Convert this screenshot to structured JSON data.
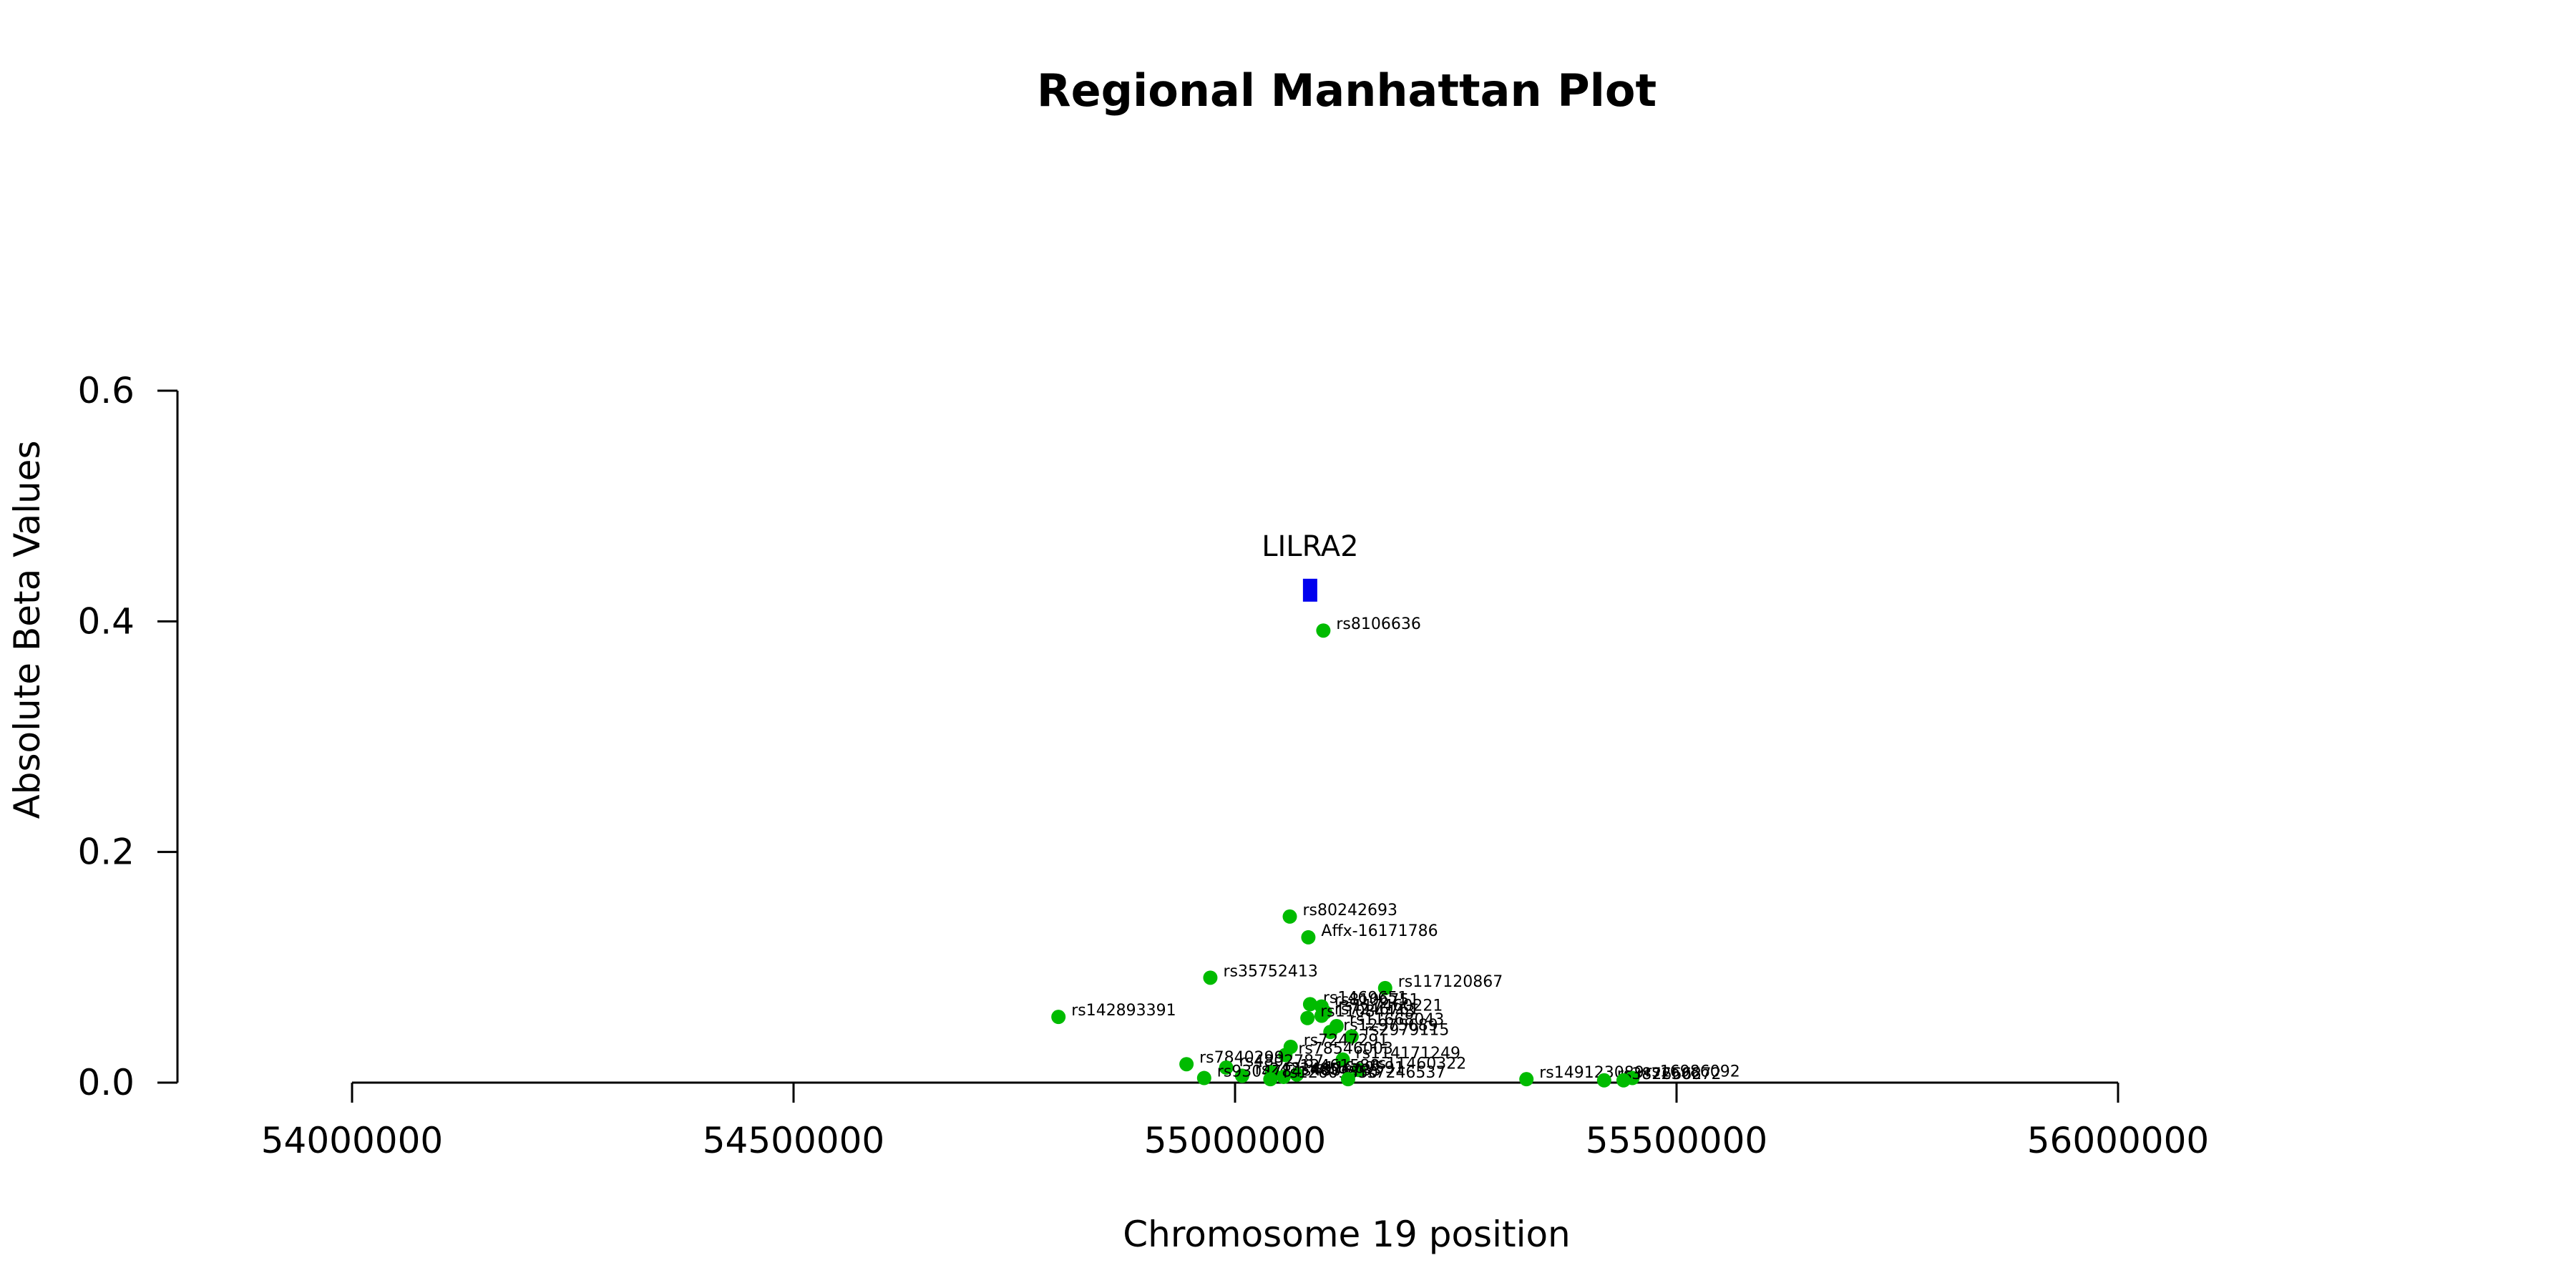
{
  "chart_data": {
    "type": "scatter",
    "title": "Regional Manhattan Plot",
    "xlabel": "Chromosome 19 position",
    "ylabel": "Absolute Beta Values",
    "xlim": [
      53800000,
      56000000
    ],
    "ylim": [
      0,
      0.6
    ],
    "x_axis_range": [
      54000000,
      56000000
    ],
    "x_ticks": [
      "54000000",
      "54500000",
      "55000000",
      "55500000",
      "56000000"
    ],
    "y_ticks": [
      "0.0",
      "0.2",
      "0.4",
      "0.6"
    ],
    "grid": false,
    "colors": {
      "snp": "#00bb00",
      "gene": "#0000ee",
      "axis": "#000000"
    },
    "gene": {
      "label": "LILRA2",
      "x": 55085000,
      "y": 0.427
    },
    "series": [
      {
        "points": [
          {
            "label": "rs8106636",
            "x": 55100000,
            "y": 0.392
          },
          {
            "label": "rs80242693",
            "x": 55062000,
            "y": 0.144
          },
          {
            "label": "Affx-16171786",
            "x": 55083000,
            "y": 0.126
          },
          {
            "label": "rs35752413",
            "x": 54972000,
            "y": 0.091
          },
          {
            "label": "rs117120867",
            "x": 55170000,
            "y": 0.082
          },
          {
            "label": "rs142893391",
            "x": 54800000,
            "y": 0.057
          },
          {
            "label": "rs1469651",
            "x": 55085000,
            "y": 0.068
          },
          {
            "label": "rs8106751",
            "x": 55098000,
            "y": 0.066
          },
          {
            "label": "rs117460221",
            "x": 55102000,
            "y": 0.061
          },
          {
            "label": "rs7246761",
            "x": 55098000,
            "y": 0.058
          },
          {
            "label": "rs11084443",
            "x": 55082000,
            "y": 0.056
          },
          {
            "label": "rs11668043",
            "x": 55115000,
            "y": 0.049
          },
          {
            "label": "rs12975689",
            "x": 55108000,
            "y": 0.044
          },
          {
            "label": "rs2979115",
            "x": 55132000,
            "y": 0.04
          },
          {
            "label": "rs7247291",
            "x": 55063000,
            "y": 0.031
          },
          {
            "label": "rs78546003",
            "x": 55057000,
            "y": 0.024
          },
          {
            "label": "rs114171249",
            "x": 55122000,
            "y": 0.02
          },
          {
            "label": "rs7840299",
            "x": 54945000,
            "y": 0.016
          },
          {
            "label": "rs4802787",
            "x": 54990000,
            "y": 0.013
          },
          {
            "label": "rs11460322",
            "x": 55140000,
            "y": 0.011
          },
          {
            "label": "rs12461580",
            "x": 55042000,
            "y": 0.009
          },
          {
            "label": "rs2433485",
            "x": 55008000,
            "y": 0.006
          },
          {
            "label": "rs4806733",
            "x": 55055000,
            "y": 0.005
          },
          {
            "label": "rs11669591",
            "x": 55070000,
            "y": 0.007
          },
          {
            "label": "rs9304784",
            "x": 54965000,
            "y": 0.004
          },
          {
            "label": "rs12609850",
            "x": 55040000,
            "y": 0.003
          },
          {
            "label": "rs7246537",
            "x": 55128000,
            "y": 0.003
          },
          {
            "label": "rs149123089",
            "x": 55330000,
            "y": 0.003
          },
          {
            "label": "rs16986092",
            "x": 55450000,
            "y": 0.004
          },
          {
            "label": "rs3826662",
            "x": 55418000,
            "y": 0.002
          },
          {
            "label": "rs7250672",
            "x": 55440000,
            "y": 0.002
          }
        ]
      }
    ]
  }
}
